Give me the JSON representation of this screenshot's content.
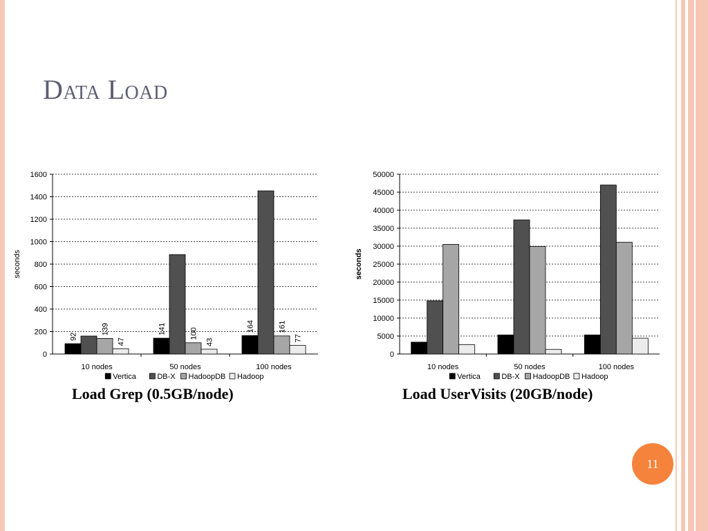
{
  "slide": {
    "title": "Data Load",
    "page_number": "11",
    "accent_color": "#f5833b",
    "border_color": "#f7c7b6"
  },
  "chart_data": [
    {
      "type": "bar",
      "caption": "Load Grep (0.5GB/node)",
      "ylabel": "seconds",
      "xlabel": "",
      "ylim": [
        0,
        1600
      ],
      "yticks": [
        0,
        200,
        400,
        600,
        800,
        1000,
        1200,
        1400,
        1600
      ],
      "grid": true,
      "legend": "bottom",
      "categories": [
        "10 nodes",
        "50 nodes",
        "100 nodes"
      ],
      "series": [
        {
          "name": "Vertica",
          "color": "#000000",
          "values": [
            92,
            141,
            164
          ],
          "labels": [
            "92",
            "141",
            "164"
          ]
        },
        {
          "name": "DB-X",
          "color": "#505050",
          "values": [
            160,
            885,
            1452
          ],
          "labels": [
            "",
            "",
            ""
          ]
        },
        {
          "name": "HadoopDB",
          "color": "#a6a6a6",
          "values": [
            139,
            100,
            161
          ],
          "labels": [
            "139",
            "100",
            "161"
          ]
        },
        {
          "name": "Hadoop",
          "color": "#ececec",
          "values": [
            47,
            43,
            77
          ],
          "labels": [
            "47",
            "43",
            "77"
          ]
        }
      ]
    },
    {
      "type": "bar",
      "caption": "Load UserVisits (20GB/node)",
      "ylabel": "seconds",
      "xlabel": "",
      "ylim": [
        0,
        50000
      ],
      "yticks": [
        0,
        5000,
        10000,
        15000,
        20000,
        25000,
        30000,
        35000,
        40000,
        45000,
        50000
      ],
      "grid": true,
      "legend": "bottom",
      "categories": [
        "10 nodes",
        "50 nodes",
        "100 nodes"
      ],
      "series": [
        {
          "name": "Vertica",
          "color": "#000000",
          "values": [
            3300,
            5300,
            5300
          ]
        },
        {
          "name": "DB-X",
          "color": "#505050",
          "values": [
            14800,
            37300,
            47000
          ]
        },
        {
          "name": "HadoopDB",
          "color": "#a6a6a6",
          "values": [
            30500,
            29900,
            31100
          ]
        },
        {
          "name": "Hadoop",
          "color": "#ececec",
          "values": [
            2600,
            1300,
            4400
          ]
        }
      ]
    }
  ]
}
